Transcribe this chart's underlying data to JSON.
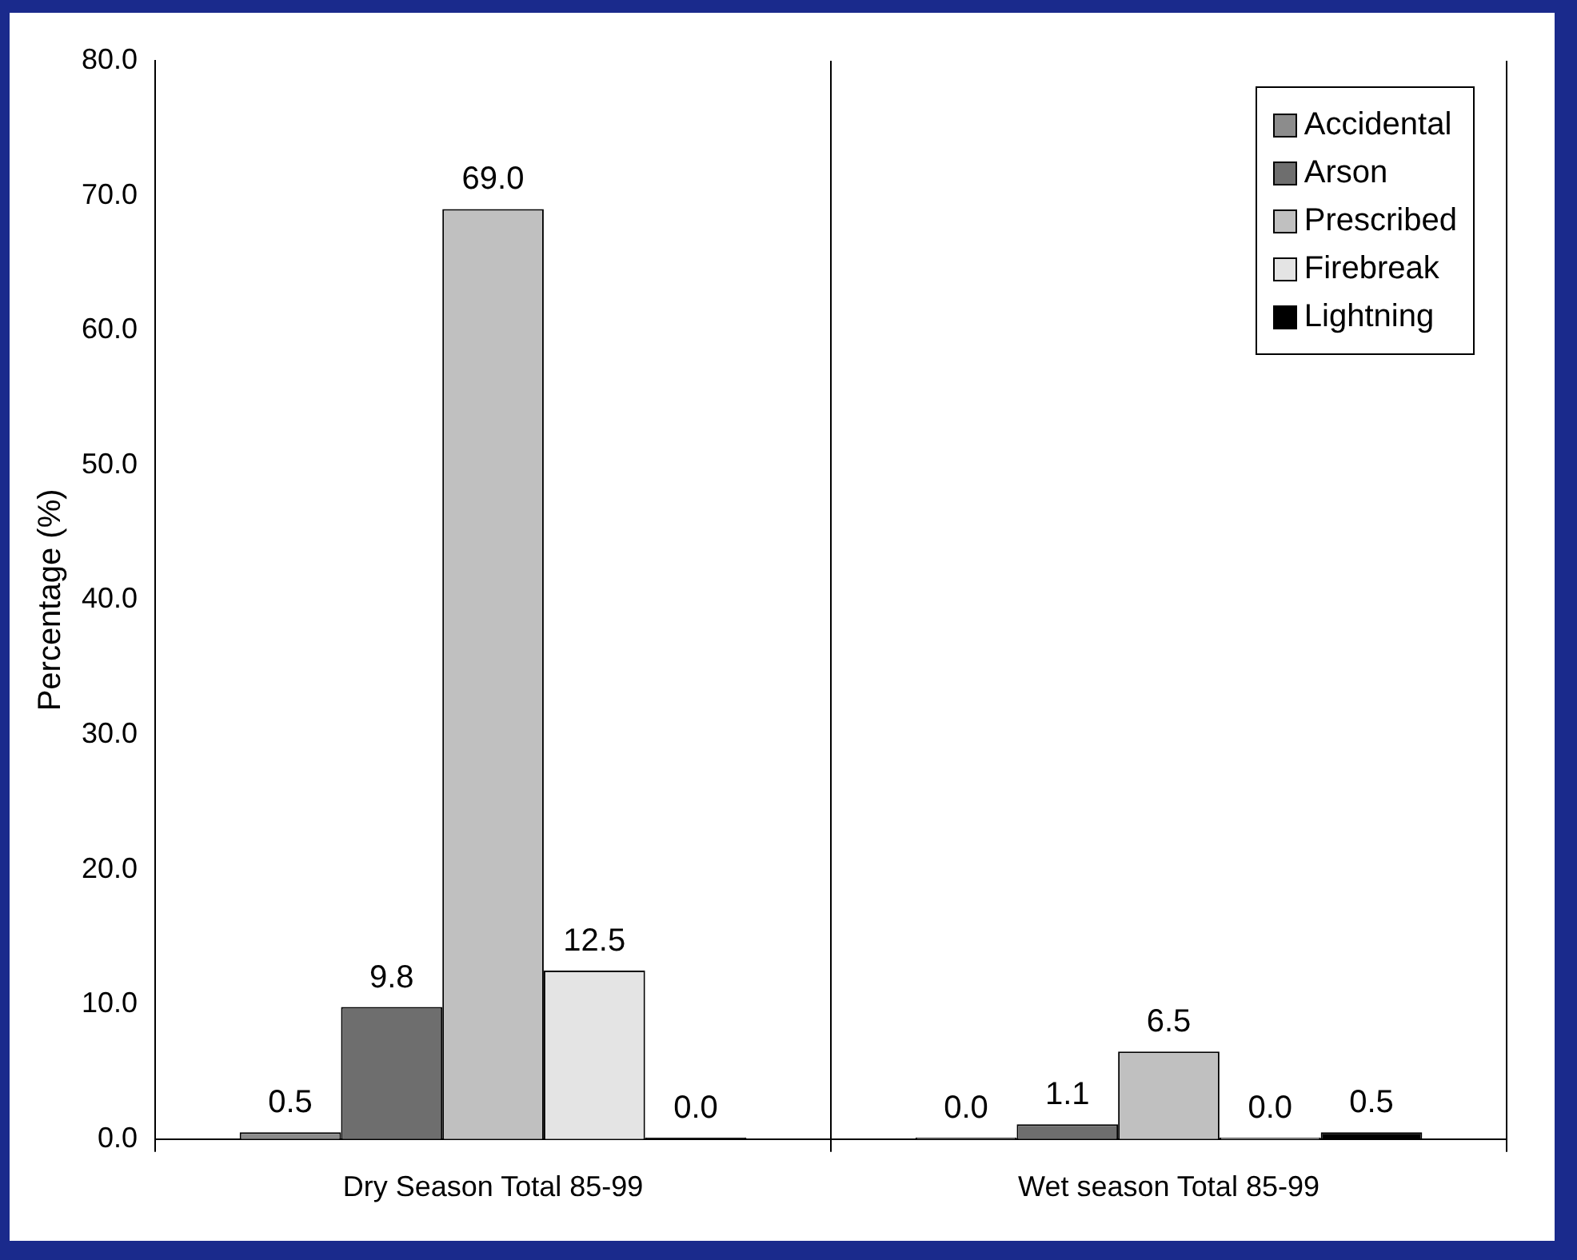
{
  "chart_data": {
    "type": "bar",
    "ylabel": "Percentage (%)",
    "categories": [
      "Dry Season Total 85-99",
      "Wet season Total 85-99"
    ],
    "series": [
      {
        "name": "Accidental",
        "color": "#8c8c8c",
        "values": [
          0.5,
          0.0
        ],
        "value_labels": [
          "0.5",
          "0.0"
        ]
      },
      {
        "name": "Arson",
        "color": "#6e6e6e",
        "values": [
          9.8,
          1.1
        ],
        "value_labels": [
          "9.8",
          "1.1"
        ]
      },
      {
        "name": "Prescribed",
        "color": "#c0c0c0",
        "values": [
          69.0,
          6.5
        ],
        "value_labels": [
          "69.0",
          "6.5"
        ]
      },
      {
        "name": "Firebreak",
        "color": "#e4e4e4",
        "values": [
          12.5,
          0.0
        ],
        "value_labels": [
          "12.5",
          "0.0"
        ]
      },
      {
        "name": "Lightning",
        "color": "#000000",
        "values": [
          0.0,
          0.5
        ],
        "value_labels": [
          "0.0",
          "0.5"
        ]
      }
    ],
    "ylim": [
      0,
      80
    ],
    "yticks": [
      {
        "value": 0,
        "label": "0.0"
      },
      {
        "value": 10,
        "label": "10.0"
      },
      {
        "value": 20,
        "label": "20.0"
      },
      {
        "value": 30,
        "label": "30.0"
      },
      {
        "value": 40,
        "label": "40.0"
      },
      {
        "value": 50,
        "label": "50.0"
      },
      {
        "value": 60,
        "label": "60.0"
      },
      {
        "value": 70,
        "label": "70.0"
      },
      {
        "value": 80,
        "label": "80.0"
      }
    ],
    "grid": "x",
    "legend": "top right"
  }
}
